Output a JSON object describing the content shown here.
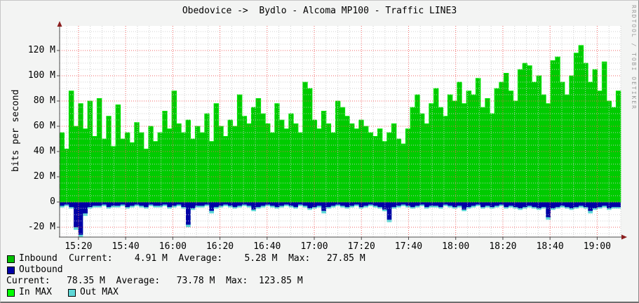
{
  "watermark": "RRDTOOL / TOBI OETIKER",
  "chart_data": {
    "type": "area",
    "title": "Obedovice ->  Bydlo - Alcoma MP100 - Traffic LINE3",
    "ylabel": "bits per second",
    "x_start": "15:12",
    "x_end": "19:10",
    "step_minutes": 2,
    "unit": "M (megabits per second)",
    "ylim": [
      -27,
      139
    ],
    "grid": "red dotted majors every 20M / 20min, gray dotted minors",
    "legend_position": "bottom-left",
    "x_ticks": [
      "15:20",
      "15:40",
      "16:00",
      "16:20",
      "16:40",
      "17:00",
      "17:20",
      "17:40",
      "18:00",
      "18:20",
      "18:40",
      "19:00"
    ],
    "y_ticks": [
      {
        "value": -20,
        "label": "-20 M"
      },
      {
        "value": 0,
        "label": "0"
      },
      {
        "value": 20,
        "label": "20 M"
      },
      {
        "value": 40,
        "label": "40 M"
      },
      {
        "value": 60,
        "label": "60 M"
      },
      {
        "value": 80,
        "label": "80 M"
      },
      {
        "value": 100,
        "label": "100 M"
      },
      {
        "value": 120,
        "label": "120 M"
      }
    ],
    "series": [
      {
        "name": "traffic-up-green-area",
        "color": "#00CB00",
        "edge_color": "#00F000",
        "direction": "positive",
        "values_mbps": [
          55,
          42,
          88,
          60,
          78,
          58,
          80,
          52,
          82,
          50,
          68,
          44,
          77,
          50,
          55,
          47,
          63,
          55,
          42,
          60,
          48,
          55,
          72,
          58,
          88,
          62,
          55,
          65,
          50,
          60,
          55,
          70,
          48,
          78,
          60,
          52,
          65,
          60,
          85,
          68,
          62,
          75,
          82,
          70,
          62,
          55,
          78,
          65,
          58,
          70,
          62,
          55,
          95,
          90,
          65,
          58,
          72,
          62,
          55,
          80,
          75,
          68,
          62,
          58,
          65,
          60,
          55,
          52,
          58,
          48,
          55,
          62,
          50,
          46,
          58,
          75,
          85,
          70,
          62,
          78,
          90,
          75,
          68,
          85,
          80,
          95,
          78,
          88,
          85,
          98,
          75,
          82,
          70,
          90,
          95,
          102,
          88,
          80,
          105,
          110,
          108,
          95,
          100,
          85,
          78,
          112,
          115,
          95,
          85,
          100,
          118,
          124,
          110,
          95,
          105,
          88,
          111,
          80,
          75,
          88
        ]
      },
      {
        "name": "traffic-down-blue-area",
        "color": "#0000A6",
        "direction": "negative",
        "values_mbps": [
          3,
          2,
          4,
          20,
          26,
          9,
          4,
          3,
          3,
          2,
          4,
          3,
          3,
          2,
          4,
          3,
          2,
          3,
          4,
          2,
          3,
          3,
          2,
          4,
          3,
          2,
          4,
          18,
          5,
          3,
          3,
          2,
          7,
          4,
          3,
          2,
          3,
          4,
          3,
          2,
          3,
          6,
          4,
          3,
          2,
          3,
          4,
          3,
          2,
          3,
          4,
          2,
          3,
          5,
          4,
          3,
          7,
          4,
          3,
          2,
          3,
          4,
          3,
          2,
          4,
          3,
          2,
          3,
          4,
          6,
          14,
          4,
          3,
          2,
          3,
          4,
          3,
          2,
          4,
          3,
          3,
          4,
          2,
          3,
          4,
          3,
          6,
          4,
          3,
          2,
          4,
          3,
          4,
          3,
          2,
          4,
          3,
          4,
          5,
          4,
          3,
          4,
          5,
          4,
          12,
          5,
          4,
          3,
          4,
          5,
          4,
          3,
          4,
          7,
          5,
          4,
          3,
          5,
          4,
          4
        ]
      },
      {
        "name": "traffic-down-max-cyan-fringe",
        "color": "#5ED7D7",
        "direction": "negative",
        "derived": "blue values plus ~1.3-2 M deeper"
      }
    ],
    "legend": {
      "inbound": {
        "label": "Inbound",
        "color": "#00C000",
        "stats": "Current:    4.91 M  Average:    5.28 M  Max:   27.85 M",
        "current": "4.91 M",
        "average": "5.28 M",
        "max": "27.85 M"
      },
      "outbound": {
        "label": "Outbound",
        "color": "#0000A6",
        "current": "78.35 M",
        "average": "73.78 M",
        "max": "123.85 M"
      },
      "outbound_stats_row": "Current:   78.35 M  Average:   73.78 M  Max:  123.85 M",
      "in_max": {
        "label": "In MAX",
        "color": "#00FF00"
      },
      "out_max": {
        "label": "Out MAX",
        "color": "#5ED7D7"
      }
    }
  }
}
